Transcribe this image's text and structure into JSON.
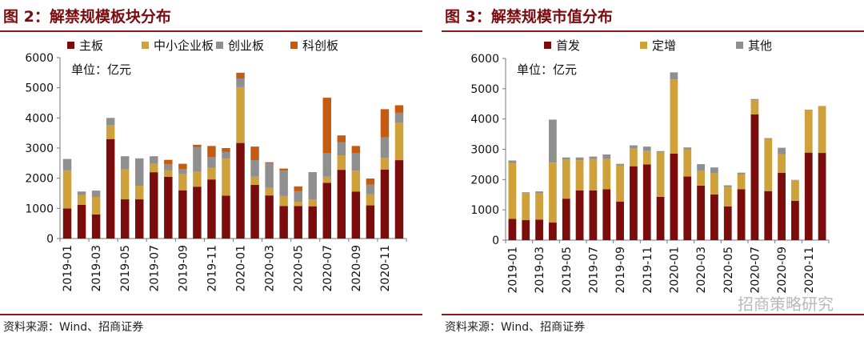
{
  "source_left": "资料来源：Wind、招商证券",
  "source_right": "资料来源：Wind、招商证券",
  "watermark": "招商策略研究",
  "chart_data": [
    {
      "type": "bar",
      "stacked": true,
      "title": "图 2：解禁规模板块分布",
      "unit_label": "单位：亿元",
      "categories": [
        "2019-01",
        "2019-02",
        "2019-03",
        "2019-04",
        "2019-05",
        "2019-06",
        "2019-07",
        "2019-08",
        "2019-09",
        "2019-10",
        "2019-11",
        "2019-12",
        "2020-01",
        "2020-02",
        "2020-03",
        "2020-04",
        "2020-05",
        "2020-06",
        "2020-07",
        "2020-08",
        "2020-09",
        "2020-10",
        "2020-11",
        "2020-12"
      ],
      "xtick_labels": [
        "2019-01",
        "2019-03",
        "2019-05",
        "2019-07",
        "2019-09",
        "2019-11",
        "2020-01",
        "2020-03",
        "2020-05",
        "2020-07",
        "2020-09",
        "2020-11"
      ],
      "ylim": [
        0,
        6000
      ],
      "yticks": [
        0,
        1000,
        2000,
        3000,
        4000,
        5000,
        6000
      ],
      "series": [
        {
          "name": "主板",
          "color": "#7b0c0c",
          "values": [
            1000,
            1120,
            800,
            3300,
            1300,
            1300,
            2200,
            2050,
            1600,
            1720,
            1960,
            1420,
            3170,
            1780,
            1430,
            1080,
            1080,
            1070,
            1850,
            2280,
            1560,
            1100,
            2290,
            2600
          ]
        },
        {
          "name": "中小企业板",
          "color": "#cfa13a",
          "values": [
            1260,
            320,
            580,
            450,
            1000,
            450,
            280,
            220,
            540,
            500,
            380,
            1230,
            1850,
            270,
            250,
            330,
            140,
            230,
            200,
            480,
            690,
            370,
            390,
            1250
          ]
        },
        {
          "name": "创业板",
          "color": "#8f8f8f",
          "values": [
            380,
            120,
            210,
            250,
            430,
            910,
            250,
            200,
            160,
            810,
            360,
            230,
            290,
            550,
            810,
            840,
            350,
            880,
            790,
            430,
            580,
            320,
            680,
            320
          ]
        },
        {
          "name": "科创板",
          "color": "#c55a11",
          "values": [
            0,
            0,
            0,
            0,
            0,
            0,
            0,
            140,
            180,
            80,
            370,
            120,
            190,
            450,
            40,
            70,
            160,
            20,
            1830,
            230,
            240,
            200,
            930,
            250
          ]
        }
      ]
    },
    {
      "type": "bar",
      "stacked": true,
      "title": "图 3：解禁规模市值分布",
      "unit_label": "单位：亿元",
      "categories": [
        "2019-01",
        "2019-02",
        "2019-03",
        "2019-04",
        "2019-05",
        "2019-06",
        "2019-07",
        "2019-08",
        "2019-09",
        "2019-10",
        "2019-11",
        "2019-12",
        "2020-01",
        "2020-02",
        "2020-03",
        "2020-04",
        "2020-05",
        "2020-06",
        "2020-07",
        "2020-08",
        "2020-09",
        "2020-10",
        "2020-11",
        "2020-12"
      ],
      "xtick_labels": [
        "2019-01",
        "2019-03",
        "2019-05",
        "2019-07",
        "2019-09",
        "2019-11",
        "2020-01",
        "2020-03",
        "2020-05",
        "2020-07",
        "2020-09",
        "2020-11"
      ],
      "ylim": [
        0,
        6000
      ],
      "yticks": [
        0,
        1000,
        2000,
        3000,
        4000,
        5000,
        6000
      ],
      "series": [
        {
          "name": "首发",
          "color": "#7b0c0c",
          "values": [
            700,
            660,
            680,
            580,
            1370,
            1640,
            1640,
            1680,
            1270,
            2440,
            2500,
            1430,
            2860,
            2100,
            1800,
            1510,
            1110,
            1680,
            4150,
            1620,
            2220,
            1300,
            2890,
            2880
          ]
        },
        {
          "name": "定增",
          "color": "#cfa13a",
          "values": [
            1850,
            900,
            880,
            1980,
            1300,
            1000,
            1040,
            1000,
            1200,
            600,
            440,
            1470,
            2450,
            900,
            500,
            700,
            640,
            490,
            470,
            1720,
            620,
            680,
            1400,
            1550
          ]
        },
        {
          "name": "其他",
          "color": "#8f8f8f",
          "values": [
            80,
            20,
            50,
            1420,
            60,
            90,
            80,
            150,
            50,
            90,
            150,
            40,
            230,
            60,
            210,
            190,
            60,
            60,
            40,
            30,
            210,
            10,
            20,
            0
          ]
        }
      ]
    }
  ]
}
